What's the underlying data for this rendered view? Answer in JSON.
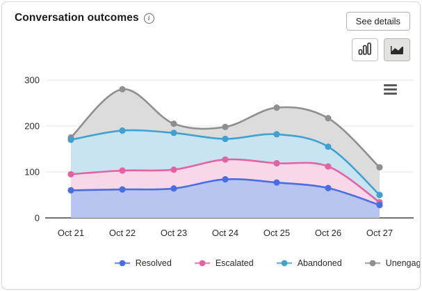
{
  "header": {
    "title": "Conversation outcomes",
    "info_icon": "info-circle-icon",
    "see_details_label": "See details",
    "chart_type_toggles": [
      {
        "name": "column-chart-toggle",
        "icon": "column-chart-icon",
        "selected": false
      },
      {
        "name": "area-chart-toggle",
        "icon": "area-chart-icon",
        "selected": true
      }
    ]
  },
  "colors": {
    "card_border": "#d6d6d6",
    "grid_line": "#e6e6e6",
    "axis_line": "#424242",
    "tick_text": "#2b2a29",
    "resolved": "#4a6ee0",
    "resolved_fill": "#b7c5f0",
    "escalated": "#e263a4",
    "escalated_fill": "#f8d7e8",
    "abandoned": "#41a0ce",
    "abandoned_fill": "#c9e4f1",
    "unengaged": "#8f8f8f",
    "unengaged_fill": "#dcdcdc"
  },
  "chart_data": {
    "type": "area",
    "title": "Conversation outcomes",
    "categories": [
      "Oct 21",
      "Oct 22",
      "Oct 23",
      "Oct 24",
      "Oct 25",
      "Oct 26",
      "Oct 27"
    ],
    "series": [
      {
        "name": "Resolved",
        "color": "#4a6ee0",
        "fill": "#b7c5f0",
        "values": [
          60,
          62,
          64,
          84,
          77,
          65,
          28
        ]
      },
      {
        "name": "Escalated",
        "color": "#e263a4",
        "fill": "#f8d7e8",
        "values": [
          95,
          103,
          105,
          127,
          119,
          112,
          34
        ]
      },
      {
        "name": "Abandoned",
        "color": "#41a0ce",
        "fill": "#c9e4f1",
        "values": [
          170,
          190,
          185,
          172,
          182,
          155,
          50
        ]
      },
      {
        "name": "Unengaged",
        "color": "#8f8f8f",
        "fill": "#dcdcdc",
        "values": [
          175,
          280,
          205,
          198,
          240,
          217,
          110
        ]
      }
    ],
    "yticks": [
      0,
      100,
      200,
      300
    ],
    "ylim": [
      0,
      300
    ],
    "xlabel": "",
    "ylabel": "",
    "grid": true,
    "legend_position": "bottom",
    "legend_order": [
      "Resolved",
      "Escalated",
      "Abandoned",
      "Unengaged"
    ]
  }
}
